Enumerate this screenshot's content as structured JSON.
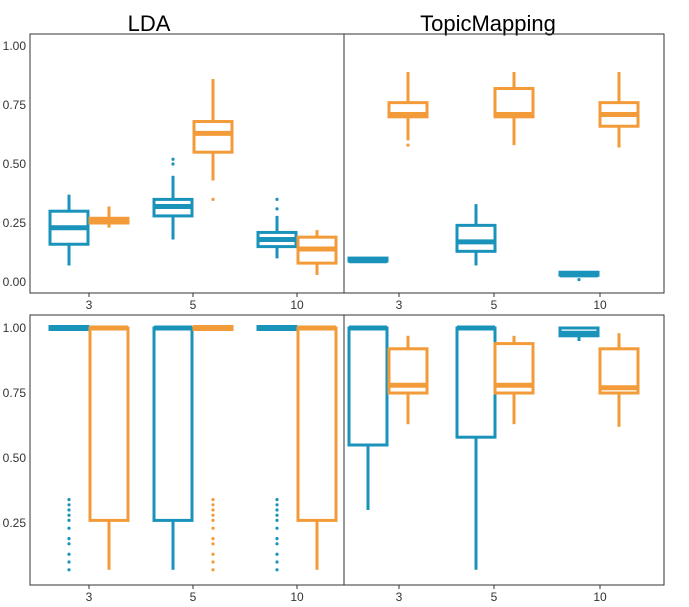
{
  "colors": {
    "blue": "#1a93bb",
    "orange": "#f29b38"
  },
  "chart_data": {
    "type": "boxplot",
    "column_titles": [
      "LDA",
      "TopicMapping"
    ],
    "categories": [
      "3",
      "5",
      "10"
    ],
    "rows": [
      {
        "ylim": [
          0,
          1
        ],
        "yticks": [
          "0.00",
          "0.25",
          "0.50",
          "0.75",
          "1.00"
        ],
        "ytick_values": [
          0,
          0.25,
          0.5,
          0.75,
          1.0
        ],
        "panels": [
          {
            "title": "LDA",
            "groups": [
              {
                "category": "3",
                "blue": {
                  "q1": 0.16,
                  "median": 0.23,
                  "q3": 0.3,
                  "whisker_low": 0.07,
                  "whisker_high": 0.37,
                  "outliers": []
                },
                "orange": {
                  "q1": 0.25,
                  "median": 0.26,
                  "q3": 0.27,
                  "whisker_low": 0.23,
                  "whisker_high": 0.32,
                  "outliers": []
                }
              },
              {
                "category": "5",
                "blue": {
                  "q1": 0.28,
                  "median": 0.32,
                  "q3": 0.35,
                  "whisker_low": 0.18,
                  "whisker_high": 0.45,
                  "outliers": [
                    0.5,
                    0.52
                  ]
                },
                "orange": {
                  "q1": 0.55,
                  "median": 0.63,
                  "q3": 0.68,
                  "whisker_low": 0.43,
                  "whisker_high": 0.86,
                  "outliers": [
                    0.35
                  ]
                }
              },
              {
                "category": "10",
                "blue": {
                  "q1": 0.15,
                  "median": 0.18,
                  "q3": 0.21,
                  "whisker_low": 0.1,
                  "whisker_high": 0.28,
                  "outliers": [
                    0.31,
                    0.35
                  ]
                },
                "orange": {
                  "q1": 0.08,
                  "median": 0.14,
                  "q3": 0.19,
                  "whisker_low": 0.03,
                  "whisker_high": 0.22,
                  "outliers": []
                }
              }
            ]
          },
          {
            "title": "TopicMapping",
            "groups": [
              {
                "category": "3",
                "blue": {
                  "q1": 0.085,
                  "median": 0.09,
                  "q3": 0.095,
                  "whisker_low": 0.085,
                  "whisker_high": 0.095,
                  "outliers": []
                },
                "orange": {
                  "q1": 0.7,
                  "median": 0.71,
                  "q3": 0.76,
                  "whisker_low": 0.6,
                  "whisker_high": 0.89,
                  "outliers": [
                    0.58
                  ]
                }
              },
              {
                "category": "5",
                "blue": {
                  "q1": 0.13,
                  "median": 0.17,
                  "q3": 0.24,
                  "whisker_low": 0.07,
                  "whisker_high": 0.33,
                  "outliers": []
                },
                "orange": {
                  "q1": 0.7,
                  "median": 0.71,
                  "q3": 0.82,
                  "whisker_low": 0.58,
                  "whisker_high": 0.89,
                  "outliers": []
                }
              },
              {
                "category": "10",
                "blue": {
                  "q1": 0.028,
                  "median": 0.03,
                  "q3": 0.035,
                  "whisker_low": 0.025,
                  "whisker_high": 0.038,
                  "outliers": [
                    0.01
                  ]
                },
                "orange": {
                  "q1": 0.66,
                  "median": 0.71,
                  "q3": 0.76,
                  "whisker_low": 0.57,
                  "whisker_high": 0.89,
                  "outliers": []
                }
              }
            ]
          }
        ]
      },
      {
        "ylim": [
          0.05,
          1.03
        ],
        "yticks": [
          "0.25",
          "0.50",
          "0.75",
          "1.00"
        ],
        "ytick_values": [
          0.25,
          0.5,
          0.75,
          1.0
        ],
        "panels": [
          {
            "title": "LDA",
            "groups": [
              {
                "category": "3",
                "blue": {
                  "q1": 1.0,
                  "median": 1.0,
                  "q3": 1.0,
                  "whisker_low": 1.0,
                  "whisker_high": 1.0,
                  "outliers": [
                    0.07,
                    0.1,
                    0.13,
                    0.17,
                    0.19,
                    0.23,
                    0.26,
                    0.28,
                    0.3,
                    0.32,
                    0.34
                  ]
                },
                "orange": {
                  "q1": 0.26,
                  "median": 1.0,
                  "q3": 1.0,
                  "whisker_low": 0.07,
                  "whisker_high": 1.0,
                  "outliers": []
                }
              },
              {
                "category": "5",
                "blue": {
                  "q1": 0.26,
                  "median": 1.0,
                  "q3": 1.0,
                  "whisker_low": 0.07,
                  "whisker_high": 1.0,
                  "outliers": []
                },
                "orange": {
                  "q1": 1.0,
                  "median": 1.0,
                  "q3": 1.0,
                  "whisker_low": 1.0,
                  "whisker_high": 1.0,
                  "outliers": [
                    0.07,
                    0.1,
                    0.13,
                    0.17,
                    0.19,
                    0.23,
                    0.26,
                    0.28,
                    0.3,
                    0.32,
                    0.34
                  ]
                }
              },
              {
                "category": "10",
                "blue": {
                  "q1": 1.0,
                  "median": 1.0,
                  "q3": 1.0,
                  "whisker_low": 1.0,
                  "whisker_high": 1.0,
                  "outliers": [
                    0.07,
                    0.1,
                    0.13,
                    0.17,
                    0.19,
                    0.23,
                    0.26,
                    0.28,
                    0.3,
                    0.32,
                    0.34
                  ]
                },
                "orange": {
                  "q1": 0.26,
                  "median": 1.0,
                  "q3": 1.0,
                  "whisker_low": 0.07,
                  "whisker_high": 1.0,
                  "outliers": []
                }
              }
            ]
          },
          {
            "title": "TopicMapping",
            "groups": [
              {
                "category": "3",
                "blue": {
                  "q1": 0.55,
                  "median": 1.0,
                  "q3": 1.0,
                  "whisker_low": 0.3,
                  "whisker_high": 1.0,
                  "outliers": []
                },
                "orange": {
                  "q1": 0.75,
                  "median": 0.78,
                  "q3": 0.92,
                  "whisker_low": 0.63,
                  "whisker_high": 0.97,
                  "outliers": []
                }
              },
              {
                "category": "5",
                "blue": {
                  "q1": 0.58,
                  "median": 1.0,
                  "q3": 1.0,
                  "whisker_low": 0.07,
                  "whisker_high": 1.0,
                  "outliers": []
                },
                "orange": {
                  "q1": 0.75,
                  "median": 0.78,
                  "q3": 0.94,
                  "whisker_low": 0.63,
                  "whisker_high": 0.97,
                  "outliers": []
                }
              },
              {
                "category": "10",
                "blue": {
                  "q1": 0.97,
                  "median": 0.98,
                  "q3": 1.0,
                  "whisker_low": 0.95,
                  "whisker_high": 1.0,
                  "outliers": []
                },
                "orange": {
                  "q1": 0.75,
                  "median": 0.77,
                  "q3": 0.92,
                  "whisker_low": 0.62,
                  "whisker_high": 0.98,
                  "outliers": []
                }
              }
            ]
          }
        ]
      }
    ]
  }
}
